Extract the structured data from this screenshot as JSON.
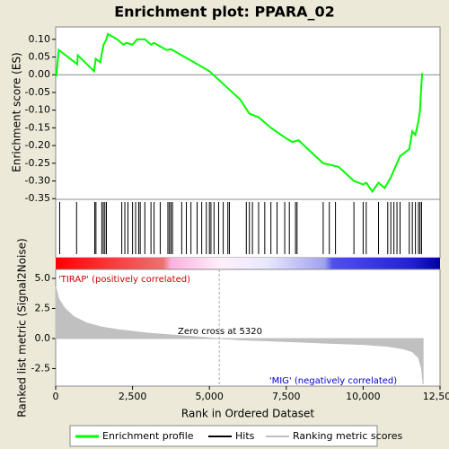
{
  "title": "Enrichment plot: PPARA_02",
  "chart_data": [
    {
      "type": "line",
      "ylabel": "Enrichment score (ES)",
      "x": [
        0,
        20,
        100,
        700,
        720,
        1250,
        1300,
        1450,
        1500,
        1560,
        1650,
        1700,
        2000,
        2200,
        2300,
        2500,
        2650,
        2900,
        3100,
        3200,
        3600,
        3750,
        4000,
        4500,
        5000,
        5500,
        6000,
        6300,
        6600,
        7000,
        7500,
        7700,
        7900,
        8200,
        8700,
        9200,
        9700,
        10000,
        10100,
        10300,
        10500,
        10700,
        10900,
        11100,
        11200,
        11500,
        11600,
        11700,
        11800,
        11850,
        11880,
        11920
      ],
      "series": [
        {
          "name": "Enrichment profile",
          "color": "#00ff00",
          "values": [
            0,
            -0.005,
            0.07,
            0.03,
            0.055,
            0.01,
            0.045,
            0.035,
            0.06,
            0.085,
            0.1,
            0.115,
            0.1,
            0.085,
            0.09,
            0.085,
            0.1,
            0.1,
            0.085,
            0.09,
            0.07,
            0.072,
            0.06,
            0.035,
            0.01,
            -0.03,
            -0.07,
            -0.11,
            -0.12,
            -0.15,
            -0.18,
            -0.19,
            -0.185,
            -0.21,
            -0.25,
            -0.26,
            -0.3,
            -0.31,
            -0.305,
            -0.33,
            -0.305,
            -0.32,
            -0.29,
            -0.25,
            -0.23,
            -0.21,
            -0.16,
            -0.17,
            -0.13,
            -0.1,
            -0.05,
            0.005
          ]
        }
      ],
      "xlim": [
        0,
        12500
      ],
      "ylim": [
        -0.352,
        0.135
      ],
      "yticks": [
        {
          "value": 0.1,
          "label": "0.10"
        },
        {
          "value": 0.05,
          "label": "0.05"
        },
        {
          "value": 0,
          "label": "0.00"
        },
        {
          "value": -0.05,
          "label": "-0.05"
        },
        {
          "value": -0.1,
          "label": "-0.10"
        },
        {
          "value": -0.15,
          "label": "-0.15"
        },
        {
          "value": -0.2,
          "label": "-0.20"
        },
        {
          "value": -0.25,
          "label": "-0.25"
        },
        {
          "value": -0.3,
          "label": "-0.30"
        },
        {
          "value": -0.35,
          "label": "-0.35"
        }
      ]
    },
    {
      "type": "hits",
      "name": "Hits",
      "color": "#000000",
      "x": [
        130,
        680,
        1270,
        1310,
        1500,
        1550,
        1600,
        1650,
        2150,
        2250,
        2350,
        2500,
        2600,
        2700,
        2750,
        2900,
        3100,
        3200,
        3400,
        3650,
        3700,
        3750,
        3800,
        4100,
        4250,
        4400,
        4600,
        4750,
        4900,
        5000,
        5050,
        5150,
        5300,
        5450,
        5600,
        5650,
        6200,
        6300,
        6400,
        6600,
        6800,
        7000,
        7200,
        7450,
        7600,
        7800,
        7850,
        8700,
        8900,
        9100,
        9700,
        10000,
        10100,
        10500,
        10800,
        10900,
        11000,
        11100,
        11200,
        11500,
        11600,
        11700,
        11800,
        11850,
        11900
      ],
      "xlim": [
        0,
        12500
      ]
    },
    {
      "type": "area",
      "xlabel": "Rank in Ordered Dataset",
      "ylabel": "Ranked list metric (Signal2Noise)",
      "x": [
        0,
        100,
        300,
        600,
        1000,
        1500,
        2000,
        3000,
        4000,
        5320,
        6000,
        7000,
        8000,
        9000,
        10000,
        10800,
        11300,
        11600,
        11800,
        11900,
        11950
      ],
      "series": [
        {
          "name": "Ranking metric scores",
          "color": "#c0c0c0",
          "values": [
            4.3,
            3.3,
            2.5,
            1.8,
            1.3,
            0.95,
            0.75,
            0.45,
            0.25,
            0,
            -0.1,
            -0.2,
            -0.3,
            -0.4,
            -0.5,
            -0.65,
            -0.85,
            -1.1,
            -1.6,
            -2.5,
            -3.8
          ]
        }
      ],
      "xlim": [
        0,
        12500
      ],
      "ylim": [
        -3.96,
        5.75
      ],
      "xticks": [
        0,
        {
          "value": 2500,
          "label": "2,500"
        },
        {
          "value": 5000,
          "label": "5,000"
        },
        {
          "value": 7500,
          "label": "7,500"
        },
        {
          "value": 10000,
          "label": "10,000"
        },
        {
          "value": 12500,
          "label": "12,500"
        }
      ],
      "yticks": [
        {
          "value": 5,
          "label": "5.0"
        },
        2.5,
        {
          "value": 0,
          "label": "0.0"
        },
        -2.5
      ],
      "zero_cross": 5320,
      "annotations": [
        "'TIRAP' (positively correlated)",
        "Zero cross at 5320",
        "'MIG' (negatively correlated)"
      ]
    }
  ]
}
